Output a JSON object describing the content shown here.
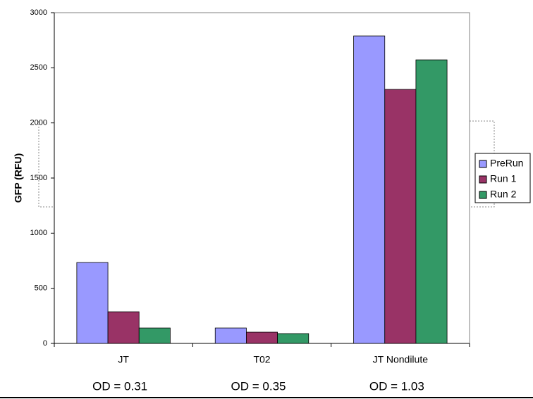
{
  "chart_data": {
    "type": "bar",
    "y_label": "GFP (RFU)",
    "categories": [
      "JT",
      "T02",
      "JT Nondilute"
    ],
    "annotations": [
      "OD = 0.31",
      "OD = 0.35",
      "OD = 1.03"
    ],
    "series": [
      {
        "name": "PreRun",
        "color": "#9999ff",
        "values": [
          734,
          140,
          2789
        ]
      },
      {
        "name": "Run 1",
        "color": "#993366",
        "values": [
          287,
          102,
          2304
        ]
      },
      {
        "name": "Run 2",
        "color": "#339966",
        "values": [
          140,
          89,
          2572
        ]
      }
    ],
    "ylim": [
      0,
      3000
    ],
    "yticks": [
      0,
      500,
      1000,
      1500,
      2000,
      2500,
      3000
    ],
    "legend": "right"
  }
}
